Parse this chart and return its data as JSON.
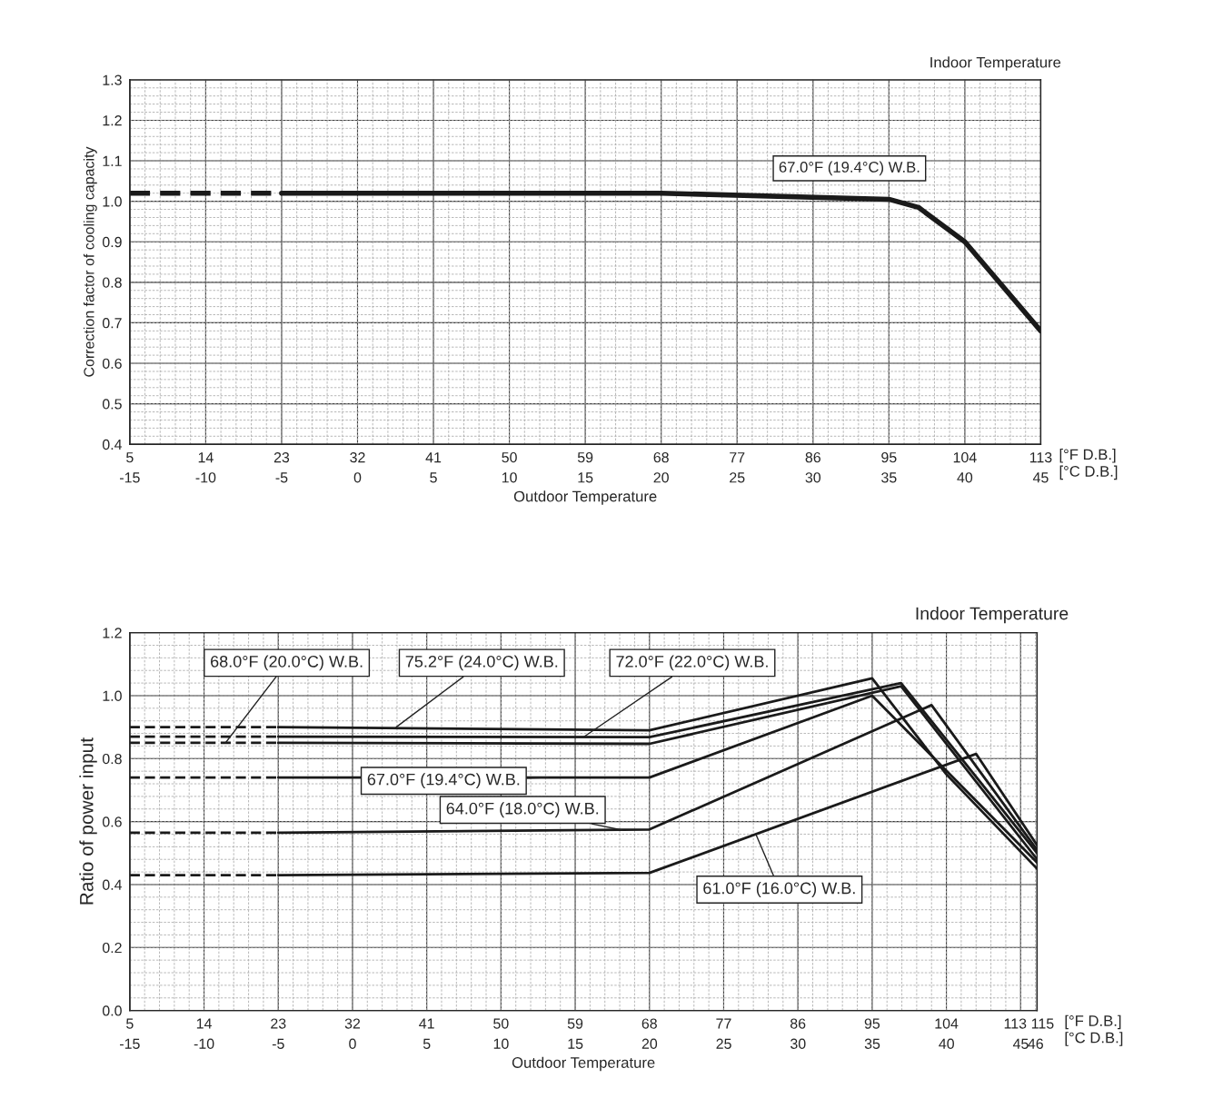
{
  "chart_data": [
    {
      "type": "line",
      "xlabel": "Outdoor Temperature",
      "ylabel": "Correction factor of cooling capacity",
      "xlim": [
        5,
        113
      ],
      "ylim": [
        0.4,
        1.3
      ],
      "xticks": [
        5,
        14,
        23,
        32,
        41,
        50,
        59,
        68,
        77,
        86,
        95,
        104,
        113
      ],
      "x2lim": [
        -15,
        45
      ],
      "x2ticks": [
        -15,
        -10,
        -5,
        0,
        5,
        10,
        15,
        20,
        25,
        30,
        35,
        40,
        45
      ],
      "yticks": [
        {
          "value": 0.4,
          "label": "0.4"
        },
        {
          "value": 0.5,
          "label": "0.5"
        },
        {
          "value": 0.6,
          "label": "0.6"
        },
        {
          "value": 0.7,
          "label": "0.7"
        },
        {
          "value": 0.8,
          "label": "0.8"
        },
        {
          "value": 0.9,
          "label": "0.9"
        },
        {
          "value": 1.0,
          "label": "1.0"
        },
        {
          "value": 1.1,
          "label": "1.1"
        },
        {
          "value": 1.2,
          "label": "1.2"
        },
        {
          "value": 1.3,
          "label": "1.3"
        }
      ],
      "grid": true,
      "series": [
        {
          "color": "#1a1a1a",
          "line_style": "dashed",
          "x": [
            5,
            23
          ],
          "values": [
            1.02,
            1.02
          ]
        },
        {
          "color": "#1a1a1a",
          "line_style": "solid",
          "x": [
            23,
            68,
            95,
            98.5,
            104,
            113
          ],
          "values": [
            1.02,
            1.02,
            1.005,
            0.985,
            0.9,
            0.68
          ]
        }
      ],
      "annotations": [
        "Indoor Temperature",
        "67.0°F (19.4°C) W.B.",
        "[°F D.B.]\n[°C D.B.]"
      ]
    },
    {
      "type": "line",
      "xlabel": "Outdoor Temperature",
      "ylabel": "Ratio of power input",
      "xlim": [
        5,
        115
      ],
      "ylim": [
        0.0,
        1.2
      ],
      "xticks": [
        5,
        14,
        23,
        32,
        41,
        50,
        59,
        68,
        77,
        86,
        95,
        104,
        113,
        115
      ],
      "x2lim": [
        -15,
        46.1
      ],
      "x2ticks": [
        -15,
        -10,
        -5,
        0,
        5,
        10,
        15,
        20,
        25,
        30,
        35,
        40,
        45,
        46
      ],
      "yticks": [
        {
          "value": 0.0,
          "label": "0.0"
        },
        {
          "value": 0.2,
          "label": "0.2"
        },
        {
          "value": 0.4,
          "label": "0.4"
        },
        {
          "value": 0.6,
          "label": "0.6"
        },
        {
          "value": 0.8,
          "label": "0.8"
        },
        {
          "value": 1.0,
          "label": "1.0"
        },
        {
          "value": 1.2,
          "label": "1.2"
        }
      ],
      "grid": true,
      "series": [
        {
          "color": "#1a1a1a",
          "line_style": "dashed",
          "x": [
            5,
            23
          ],
          "values": [
            0.9,
            0.9
          ]
        },
        {
          "color": "#1a1a1a",
          "line_style": "solid",
          "x": [
            23,
            68,
            95,
            104,
            115
          ],
          "values": [
            0.9,
            0.89,
            1.055,
            0.75,
            0.45
          ]
        },
        {
          "color": "#1a1a1a",
          "line_style": "dashed",
          "x": [
            5,
            23
          ],
          "values": [
            0.87,
            0.87
          ]
        },
        {
          "color": "#1a1a1a",
          "line_style": "solid",
          "x": [
            23,
            68,
            98.5,
            115
          ],
          "values": [
            0.87,
            0.868,
            1.04,
            0.5
          ]
        },
        {
          "color": "#1a1a1a",
          "line_style": "dashed",
          "x": [
            5,
            23
          ],
          "values": [
            0.85,
            0.85
          ]
        },
        {
          "color": "#1a1a1a",
          "line_style": "solid",
          "x": [
            23,
            68,
            98.5,
            115
          ],
          "values": [
            0.85,
            0.847,
            1.03,
            0.48
          ]
        },
        {
          "color": "#1a1a1a",
          "line_style": "dashed",
          "x": [
            5,
            23
          ],
          "values": [
            0.74,
            0.74
          ]
        },
        {
          "color": "#1a1a1a",
          "line_style": "solid",
          "x": [
            23,
            68,
            95,
            115
          ],
          "values": [
            0.74,
            0.74,
            1.0,
            0.47
          ]
        },
        {
          "color": "#1a1a1a",
          "line_style": "dashed",
          "x": [
            5,
            23
          ],
          "values": [
            0.565,
            0.565
          ]
        },
        {
          "color": "#1a1a1a",
          "line_style": "solid",
          "x": [
            23,
            68,
            102.2,
            115
          ],
          "values": [
            0.565,
            0.575,
            0.97,
            0.51
          ]
        },
        {
          "color": "#1a1a1a",
          "line_style": "dashed",
          "x": [
            5,
            23
          ],
          "values": [
            0.43,
            0.43
          ]
        },
        {
          "color": "#1a1a1a",
          "line_style": "solid",
          "x": [
            23,
            68,
            107.6,
            115
          ],
          "values": [
            0.43,
            0.437,
            0.815,
            0.525
          ]
        }
      ],
      "annotations": [
        "Indoor Temperature",
        "[°F D.B.]\n[°C D.B.]",
        {
          "text": "68.0°F (20.0°C) W.B.",
          "x": 16.6,
          "y": 0.85
        },
        {
          "text": "75.2°F (24.0°C) W.B.",
          "x": 37.3,
          "y": 0.9
        },
        {
          "text": "72.0°F (22.0°C) W.B.",
          "x": 60.1,
          "y": 0.87
        },
        {
          "text": "67.0°F (19.4°C) W.B.",
          "x": 55.7,
          "y": 0.74
        },
        {
          "text": "64.0°F (18.0°C) W.B.",
          "x": 64.7,
          "y": 0.573
        },
        {
          "text": "61.0°F (16.0°C) W.B.",
          "x": 80.9,
          "y": 0.56
        }
      ]
    }
  ]
}
